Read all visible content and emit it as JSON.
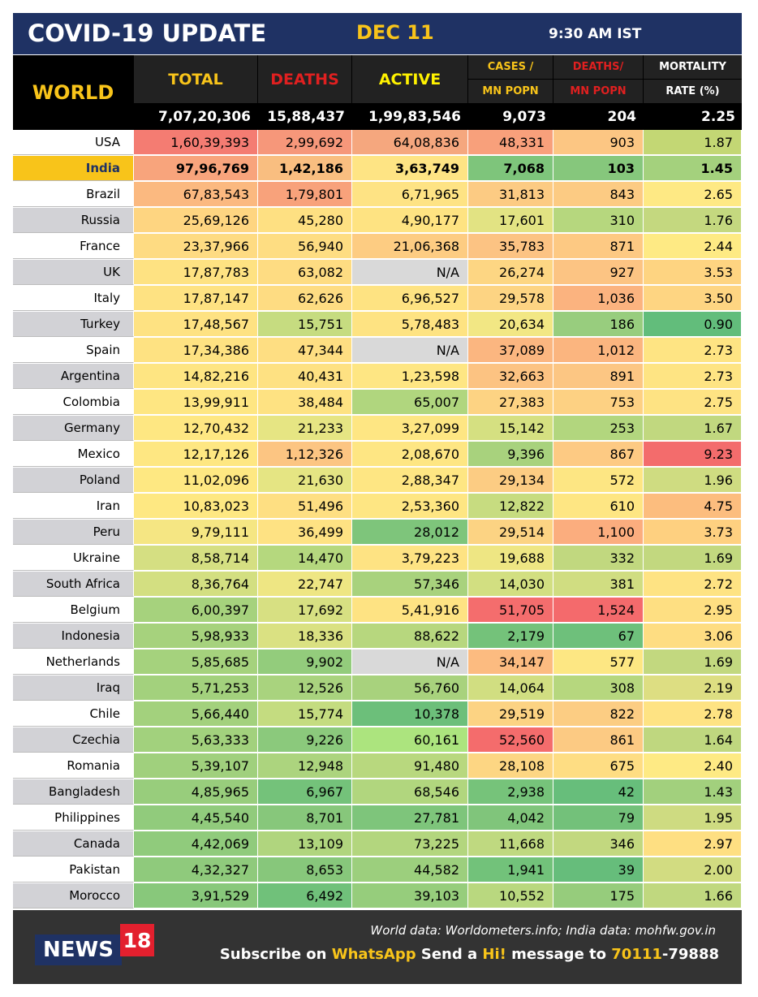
{
  "header": {
    "title": "COVID-19 UPDATE",
    "date": "DEC 11",
    "time": "9:30 AM IST"
  },
  "columns": {
    "world": "WORLD",
    "total": "TOTAL",
    "deaths": "DEATHS",
    "active": "ACTIVE",
    "cases_line1": "CASES /",
    "cases_line2": "MN POPN",
    "deathsmn_line1": "DEATHS/",
    "deathsmn_line2": "MN POPN",
    "mortality_line1": "MORTALITY",
    "mortality_line2": "RATE (%)"
  },
  "world_totals": {
    "total": "7,07,20,306",
    "deaths": "15,88,437",
    "active": "1,99,83,546",
    "cases_mn": "9,073",
    "deaths_mn": "204",
    "mortality": "2.25"
  },
  "colors": {
    "header_bg": "#1f3264",
    "accent_yellow": "#f8c41a",
    "deaths_red": "#e02020",
    "india_highlight": "#f8c41a"
  },
  "rows": [
    {
      "country": "USA",
      "values": [
        "1,60,39,393",
        "2,99,692",
        "64,08,836",
        "48,331",
        "903",
        "1.87"
      ],
      "colors": [
        "#f47c72",
        "#f6977a",
        "#f5a77e",
        "#f8a07b",
        "#fcc683",
        "#c3d774"
      ]
    },
    {
      "country": "India",
      "highlight": true,
      "values": [
        "97,96,769",
        "1,42,186",
        "3,63,749",
        "7,068",
        "103",
        "1.45"
      ],
      "colors": [
        "#f8a47c",
        "#f9be80",
        "#fee484",
        "#7ec57b",
        "#86c77c",
        "#a4d17d"
      ]
    },
    {
      "country": "Brazil",
      "values": [
        "67,83,543",
        "1,79,801",
        "6,71,965",
        "31,813",
        "843",
        "2.65"
      ],
      "colors": [
        "#fbb980",
        "#f8a27b",
        "#fee384",
        "#fccb83",
        "#fccb83",
        "#fee984"
      ]
    },
    {
      "country": "Russia",
      "values": [
        "25,69,126",
        "45,280",
        "4,90,177",
        "17,601",
        "310",
        "1.76"
      ],
      "colors": [
        "#fed581",
        "#fee082",
        "#fee382",
        "#e2e383",
        "#b6d77e",
        "#c4d87f"
      ]
    },
    {
      "country": "France",
      "values": [
        "23,37,966",
        "56,940",
        "21,06,368",
        "35,783",
        "871",
        "2.44"
      ],
      "colors": [
        "#fedb82",
        "#fedd82",
        "#fdcc82",
        "#fcc383",
        "#fdc983",
        "#feea84"
      ]
    },
    {
      "country": "UK",
      "values": [
        "17,87,783",
        "63,082",
        "N/A",
        "26,274",
        "927",
        "3.53"
      ],
      "colors": [
        "#fee282",
        "#fedc82",
        "#d9d9d9",
        "#fdd683",
        "#fcc483",
        "#fed481"
      ]
    },
    {
      "country": "Italy",
      "values": [
        "17,87,147",
        "62,626",
        "6,96,527",
        "29,578",
        "1,036",
        "3.50"
      ],
      "colors": [
        "#fee282",
        "#fedc82",
        "#fee382",
        "#fdd483",
        "#fbb37f",
        "#fed582"
      ]
    },
    {
      "country": "Turkey",
      "values": [
        "17,48,567",
        "15,751",
        "5,78,483",
        "20,634",
        "186",
        "0.90"
      ],
      "colors": [
        "#fee282",
        "#c6dc80",
        "#fee382",
        "#f2e784",
        "#98cd7e",
        "#62bd7b"
      ]
    },
    {
      "country": "Spain",
      "values": [
        "17,34,386",
        "47,344",
        "N/A",
        "37,089",
        "1,012",
        "2.73"
      ],
      "colors": [
        "#fee282",
        "#fede82",
        "#d9d9d9",
        "#fbb680",
        "#fbb57f",
        "#fee483"
      ]
    },
    {
      "country": "Argentina",
      "values": [
        "14,82,216",
        "40,431",
        "1,23,598",
        "32,663",
        "891",
        "2.73"
      ],
      "colors": [
        "#fee582",
        "#fee182",
        "#fee683",
        "#fcc382",
        "#fcc683",
        "#fee483"
      ]
    },
    {
      "country": "Colombia",
      "values": [
        "13,99,911",
        "38,484",
        "65,007",
        "27,383",
        "753",
        "2.75"
      ],
      "colors": [
        "#fee682",
        "#fee282",
        "#b0d67e",
        "#fdd383",
        "#fdd183",
        "#fee383"
      ]
    },
    {
      "country": "Germany",
      "values": [
        "12,70,432",
        "21,233",
        "3,27,099",
        "15,142",
        "253",
        "1.67"
      ],
      "colors": [
        "#fee782",
        "#e6e583",
        "#fee683",
        "#d5e081",
        "#b2d67e",
        "#c1d87f"
      ]
    },
    {
      "country": "Mexico",
      "values": [
        "12,17,126",
        "1,12,326",
        "2,08,670",
        "9,396",
        "867",
        "9.23"
      ],
      "colors": [
        "#fee782",
        "#fcc582",
        "#fee683",
        "#a8d27d",
        "#fdca83",
        "#f36c6c"
      ]
    },
    {
      "country": "Poland",
      "values": [
        "11,02,096",
        "21,630",
        "2,88,347",
        "29,134",
        "572",
        "1.96"
      ],
      "colors": [
        "#fee882",
        "#e5e583",
        "#fee683",
        "#fccc83",
        "#fde683",
        "#cfdc81"
      ]
    },
    {
      "country": "Iran",
      "values": [
        "10,83,023",
        "51,496",
        "2,53,360",
        "12,822",
        "610",
        "4.75"
      ],
      "colors": [
        "#fee882",
        "#fedf82",
        "#fee683",
        "#c7dc80",
        "#fee683",
        "#fcbd7e"
      ]
    },
    {
      "country": "Peru",
      "values": [
        "9,79,111",
        "36,499",
        "28,012",
        "29,514",
        "1,100",
        "3.73"
      ],
      "colors": [
        "#f5e683",
        "#fee283",
        "#7ec57b",
        "#fcd383",
        "#fbad7e",
        "#fed080"
      ]
    },
    {
      "country": "Ukraine",
      "values": [
        "8,58,714",
        "14,470",
        "3,79,223",
        "19,688",
        "332",
        "1.69"
      ],
      "colors": [
        "#d5df82",
        "#b5d87e",
        "#fee383",
        "#eee683",
        "#c1d87f",
        "#c2d87f"
      ]
    },
    {
      "country": "South Africa",
      "values": [
        "8,36,764",
        "22,747",
        "57,346",
        "14,030",
        "381",
        "2.72"
      ],
      "colors": [
        "#d3df81",
        "#eee683",
        "#a8d27d",
        "#d2df81",
        "#d0dd81",
        "#fee383"
      ]
    },
    {
      "country": "Belgium",
      "values": [
        "6,00,397",
        "17,692",
        "5,41,916",
        "51,705",
        "1,524",
        "2.95"
      ],
      "colors": [
        "#a6d27d",
        "#d7e082",
        "#fee383",
        "#f46d6d",
        "#f46a6c",
        "#fedf82"
      ]
    },
    {
      "country": "Indonesia",
      "values": [
        "5,98,933",
        "18,336",
        "88,622",
        "2,179",
        "67",
        "3.06"
      ],
      "colors": [
        "#a6d27d",
        "#dae182",
        "#b7d77e",
        "#74c27a",
        "#6ec07b",
        "#fedd82"
      ]
    },
    {
      "country": "Netherlands",
      "values": [
        "5,85,685",
        "9,902",
        "N/A",
        "34,147",
        "577",
        "1.69"
      ],
      "colors": [
        "#a5d27d",
        "#93cc7c",
        "#d9d9d9",
        "#fcbb80",
        "#fde783",
        "#c2d87f"
      ]
    },
    {
      "country": "Iraq",
      "values": [
        "5,71,253",
        "12,526",
        "56,760",
        "14,064",
        "308",
        "2.19"
      ],
      "colors": [
        "#a3d17d",
        "#a9d37e",
        "#a8d27d",
        "#d1de81",
        "#b6d77e",
        "#ddde82"
      ]
    },
    {
      "country": "Chile",
      "values": [
        "5,66,440",
        "15,774",
        "10,378",
        "29,519",
        "822",
        "2.78"
      ],
      "colors": [
        "#a3d17d",
        "#c4dc80",
        "#6cbf7a",
        "#fcd383",
        "#fccd83",
        "#fee383"
      ]
    },
    {
      "country": "Czechia",
      "values": [
        "5,63,333",
        "9,226",
        "60,161",
        "52,560",
        "861",
        "1.64"
      ],
      "colors": [
        "#a2d17d",
        "#8bc97c",
        "#ace47e",
        "#f46c6c",
        "#fcca83",
        "#bfd77f"
      ]
    },
    {
      "country": "Romania",
      "values": [
        "5,39,107",
        "12,948",
        "91,480",
        "28,108",
        "675",
        "2.40"
      ],
      "colors": [
        "#a0d07d",
        "#acd47e",
        "#b8d87e",
        "#fdd683",
        "#fedd83",
        "#feea84"
      ]
    },
    {
      "country": "Bangladesh",
      "values": [
        "4,85,965",
        "6,967",
        "68,546",
        "2,938",
        "42",
        "1.43"
      ],
      "colors": [
        "#98cd7c",
        "#74c27a",
        "#b1d67e",
        "#76c37a",
        "#67be7b",
        "#a2d07d"
      ]
    },
    {
      "country": "Philippines",
      "values": [
        "4,45,540",
        "8,701",
        "27,781",
        "4,042",
        "79",
        "1.95"
      ],
      "colors": [
        "#91cb7c",
        "#87c77b",
        "#7ec57b",
        "#80c57b",
        "#73c17a",
        "#cedb81"
      ]
    },
    {
      "country": "Canada",
      "values": [
        "4,42,069",
        "13,109",
        "73,225",
        "11,668",
        "346",
        "2.97"
      ],
      "colors": [
        "#90cb7c",
        "#b0d57e",
        "#b3d67e",
        "#bfd980",
        "#c2d87f",
        "#fedf82"
      ]
    },
    {
      "country": "Pakistan",
      "values": [
        "4,32,327",
        "8,653",
        "44,582",
        "1,941",
        "39",
        "2.00"
      ],
      "colors": [
        "#8fca7c",
        "#87c77b",
        "#9ccf7d",
        "#72c27a",
        "#66bd7b",
        "#d2dc81"
      ]
    },
    {
      "country": "Morocco",
      "values": [
        "3,91,529",
        "6,492",
        "39,103",
        "10,552",
        "175",
        "1.66"
      ],
      "colors": [
        "#88c87b",
        "#70c17a",
        "#96cd7c",
        "#b9d87f",
        "#96cc7c",
        "#c0d87f"
      ]
    }
  ],
  "footer": {
    "logo_news": "NEWS",
    "logo_18": "18",
    "source": "World data: Worldometers.info; India data: mohfw.gov.in",
    "sub_1": "Subscribe on ",
    "sub_2": "WhatsApp",
    "sub_3": " Send a ",
    "sub_4": "Hi!",
    "sub_5": " message to ",
    "sub_6": "70111",
    "sub_7": "-79888"
  }
}
